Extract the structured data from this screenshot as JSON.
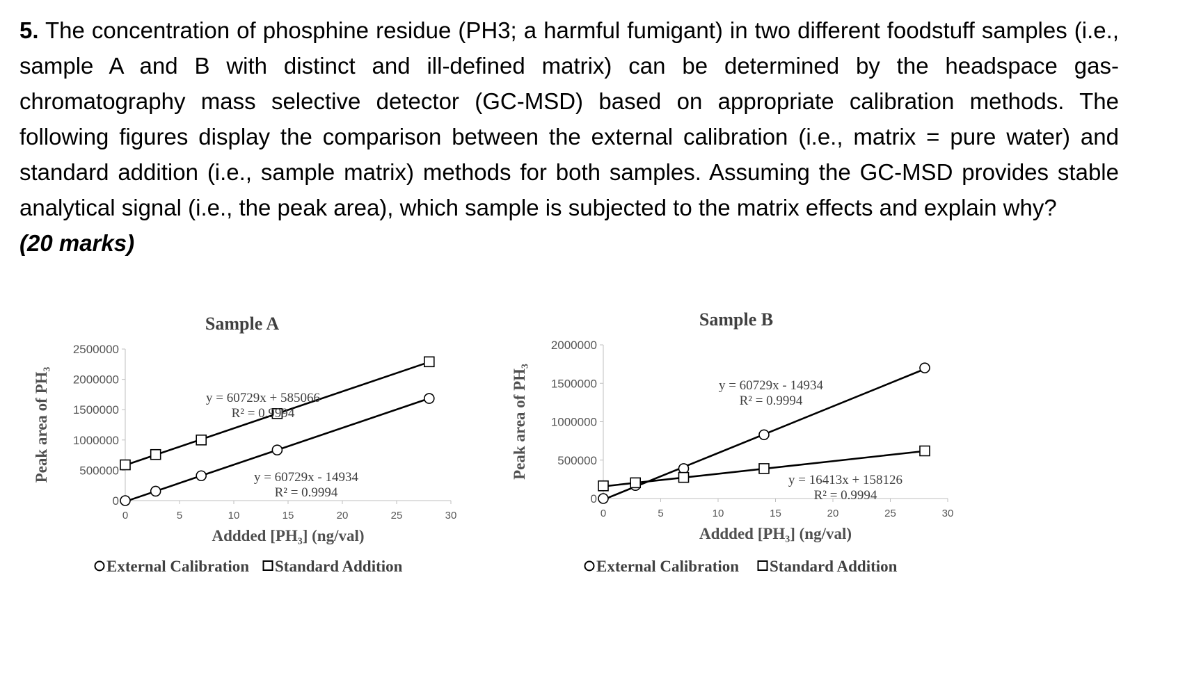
{
  "question": {
    "number": "5.",
    "text": "The concentration of phosphine residue (PH3; a harmful fumigant) in two different foodstuff samples (i.e., sample A and B with distinct and ill-defined matrix) can be determined by the headspace gas-chromatography mass selective detector (GC-MSD) based on appropriate calibration methods. The following figures display the comparison between the external calibration (i.e., matrix = pure water) and standard addition (i.e., sample matrix) methods for both samples. Assuming the GC-MSD provides stable analytical signal (i.e., the peak area), which sample is subjected to the matrix effects and explain why?",
    "marks": "(20 marks)"
  },
  "chart_data": [
    {
      "type": "scatter",
      "title": "Sample A",
      "xlabel": "Addded [PH₃] (ng/val)",
      "ylabel": "Peak area of PH₃",
      "xlim": [
        0,
        30
      ],
      "ylim": [
        0,
        2500000
      ],
      "xticks": [
        0,
        5,
        10,
        15,
        20,
        25,
        30
      ],
      "yticks": [
        0,
        500000,
        1000000,
        1500000,
        2000000,
        2500000
      ],
      "grid": false,
      "legend_position": "bottom",
      "series": [
        {
          "name": "External Calibration",
          "marker": "circle",
          "x": [
            0,
            2.8,
            7,
            14,
            28
          ],
          "y": [
            0,
            155000,
            410000,
            835000,
            1685000
          ],
          "trendline": {
            "slope": 60729,
            "intercept": -14934
          },
          "equation": "y = 60729x - 14934",
          "r2": "R² = 0.9994"
        },
        {
          "name": "Standard Addition",
          "marker": "square",
          "x": [
            0,
            2.8,
            7,
            14,
            28
          ],
          "y": [
            590000,
            760000,
            1000000,
            1435000,
            2290000
          ],
          "trendline": {
            "slope": 60729,
            "intercept": 585066
          },
          "equation": "y = 60729x + 585066",
          "r2": "R² = 0.9994"
        }
      ]
    },
    {
      "type": "scatter",
      "title": "Sample B",
      "xlabel": "Addded [PH₃] (ng/val)",
      "ylabel": "Peak area of PH₃",
      "xlim": [
        0,
        30
      ],
      "ylim": [
        0,
        2000000
      ],
      "xticks": [
        0,
        5,
        10,
        15,
        20,
        25,
        30
      ],
      "yticks": [
        0,
        500000,
        1000000,
        1500000,
        2000000
      ],
      "grid": false,
      "legend_position": "bottom",
      "series": [
        {
          "name": "External Calibration",
          "marker": "circle",
          "x": [
            0,
            2.8,
            7,
            14,
            28
          ],
          "y": [
            0,
            170000,
            390000,
            830000,
            1700000
          ],
          "trendline": {
            "slope": 60729,
            "intercept": -14934
          },
          "equation": "y = 60729x - 14934",
          "r2": "R² = 0.9994"
        },
        {
          "name": "Standard Addition",
          "marker": "square",
          "x": [
            0,
            2.8,
            7,
            14,
            28
          ],
          "y": [
            165000,
            205000,
            275000,
            390000,
            620000
          ],
          "trendline": {
            "slope": 16413,
            "intercept": 158126
          },
          "equation": "y = 16413x + 158126",
          "r2": "R² = 0.9994"
        }
      ]
    }
  ]
}
